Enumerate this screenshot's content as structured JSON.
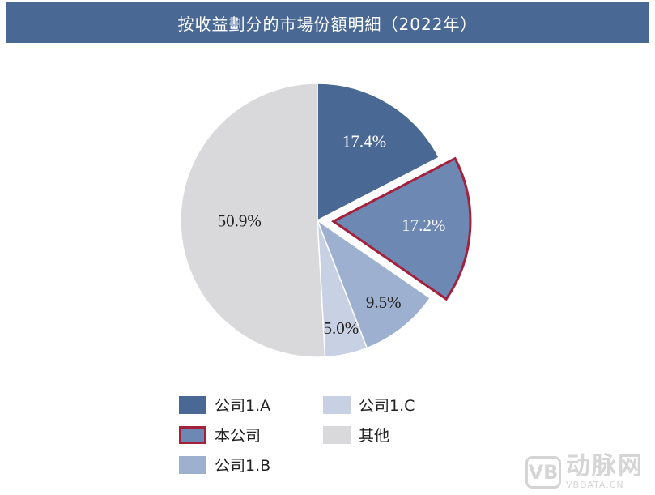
{
  "header": {
    "title": "按收益劃分的市場份額明細（2022年）"
  },
  "chart_data": {
    "type": "pie",
    "title": "按收益劃分的市場份額明細（2022年）",
    "slices": [
      {
        "name": "公司1.A",
        "value": 17.4,
        "label": "17.4%",
        "color": "#4a6894",
        "exploded": false
      },
      {
        "name": "本公司",
        "value": 17.2,
        "label": "17.2%",
        "color": "#6c88b3",
        "exploded": true,
        "outline": "#a3213d"
      },
      {
        "name": "公司1.B",
        "value": 9.5,
        "label": "9.5%",
        "color": "#9eb0cf",
        "exploded": false
      },
      {
        "name": "公司1.C",
        "value": 5.0,
        "label": "5.0%",
        "color": "#c7d1e3",
        "exploded": false
      },
      {
        "name": "其他",
        "value": 50.9,
        "label": "50.9%",
        "color": "#d9d9db",
        "exploded": false
      }
    ],
    "legend_order": [
      "公司1.A",
      "公司1.C",
      "本公司",
      "其他",
      "公司1.B"
    ],
    "legend_position": "bottom"
  },
  "watermark": {
    "cn": "动脉网",
    "en": "VBDATA.CN",
    "logo": "VB"
  }
}
